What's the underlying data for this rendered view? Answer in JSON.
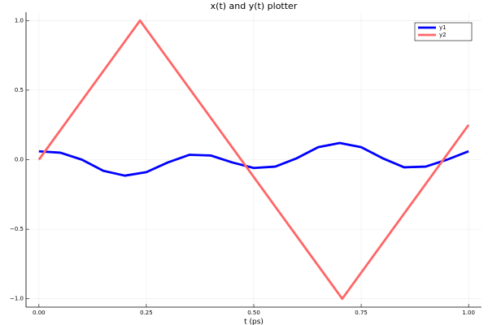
{
  "chart_data": {
    "type": "line",
    "title": "x(t) and y(t) plotter",
    "xlabel": "t (ps)",
    "x": [
      0,
      0.05,
      0.1,
      0.15,
      0.2,
      0.2353,
      0.25,
      0.3,
      0.35,
      0.4,
      0.45,
      0.5,
      0.55,
      0.6,
      0.65,
      0.7,
      0.7059,
      0.75,
      0.8,
      0.85,
      0.9,
      0.95,
      1.0
    ],
    "series": [
      {
        "name": "y1",
        "color": "#0000ff",
        "values": [
          0.06,
          0.05,
          0.0,
          -0.08,
          -0.115,
          null,
          -0.09,
          -0.02,
          0.035,
          0.03,
          -0.02,
          -0.06,
          -0.05,
          0.01,
          0.09,
          0.12,
          null,
          0.09,
          0.01,
          -0.055,
          -0.05,
          0.0,
          0.06
        ]
      },
      {
        "name": "y2",
        "color": "#ff6666",
        "values": [
          0,
          null,
          null,
          null,
          null,
          1,
          null,
          null,
          null,
          null,
          null,
          null,
          null,
          null,
          null,
          null,
          -1,
          null,
          null,
          null,
          null,
          null,
          0.25
        ]
      }
    ],
    "xlim": [
      -0.03,
      1.03
    ],
    "ylim": [
      -1.06,
      1.06
    ],
    "xticks": [
      {
        "value": 0,
        "label": "0.00"
      },
      {
        "value": 0.25,
        "label": "0.25"
      },
      {
        "value": 0.5,
        "label": "0.50"
      },
      {
        "value": 0.75,
        "label": "0.75"
      },
      {
        "value": 1,
        "label": "1.00"
      }
    ],
    "yticks": [
      {
        "value": -1,
        "label": "−1.0"
      },
      {
        "value": -0.5,
        "label": "−0.5"
      },
      {
        "value": 0,
        "label": "0.0"
      },
      {
        "value": 0.5,
        "label": "0.5"
      },
      {
        "value": 1,
        "label": "1.0"
      }
    ],
    "grid": true,
    "legend": "top-right"
  }
}
